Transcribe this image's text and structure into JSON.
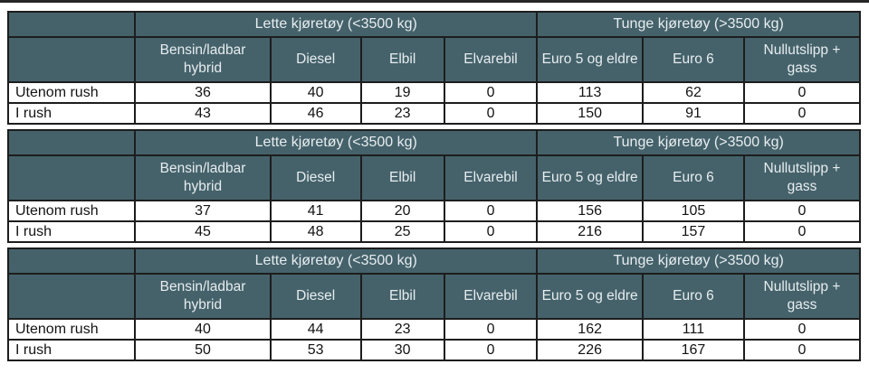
{
  "colors": {
    "header_bg": "#45626b",
    "header_text": "#e7edef",
    "border": "#1d1d1d",
    "data_text": "#131313",
    "page_bg": "#ffffff"
  },
  "labels": {
    "light_group": "Lette kjøretøy (<3500 kg)",
    "heavy_group": "Tunge kjøretøy (>3500 kg)",
    "columns": [
      "Bensin/ladbar hybrid",
      "Diesel",
      "Elbil",
      "Elvarebil",
      "Euro 5 og eldre",
      "Euro 6",
      "Nullutslipp + gass"
    ],
    "row_labels": [
      "Utenom rush",
      "I rush"
    ]
  },
  "tables": [
    {
      "rows": [
        {
          "label": "Utenom rush",
          "values": [
            "36",
            "40",
            "19",
            "0",
            "113",
            "62",
            "0"
          ]
        },
        {
          "label": "I rush",
          "values": [
            "43",
            "46",
            "23",
            "0",
            "150",
            "91",
            "0"
          ]
        }
      ]
    },
    {
      "rows": [
        {
          "label": "Utenom rush",
          "values": [
            "37",
            "41",
            "20",
            "0",
            "156",
            "105",
            "0"
          ]
        },
        {
          "label": "I rush",
          "values": [
            "45",
            "48",
            "25",
            "0",
            "216",
            "157",
            "0"
          ]
        }
      ]
    },
    {
      "rows": [
        {
          "label": "Utenom rush",
          "values": [
            "40",
            "44",
            "23",
            "0",
            "162",
            "111",
            "0"
          ]
        },
        {
          "label": "I rush",
          "values": [
            "50",
            "53",
            "30",
            "0",
            "226",
            "167",
            "0"
          ]
        }
      ]
    }
  ],
  "chart_data": [
    {
      "type": "table",
      "title": "",
      "column_groups": [
        {
          "label": "Lette kjøretøy (<3500 kg)",
          "span": 4
        },
        {
          "label": "Tunge kjøretøy (>3500 kg)",
          "span": 3
        }
      ],
      "columns": [
        "",
        "Bensin/ladbar hybrid",
        "Diesel",
        "Elbil",
        "Elvarebil",
        "Euro 5 og eldre",
        "Euro 6",
        "Nullutslipp + gass"
      ],
      "rows": [
        [
          "Utenom rush",
          36,
          40,
          19,
          0,
          113,
          62,
          0
        ],
        [
          "I rush",
          43,
          46,
          23,
          0,
          150,
          91,
          0
        ]
      ]
    },
    {
      "type": "table",
      "title": "",
      "column_groups": [
        {
          "label": "Lette kjøretøy (<3500 kg)",
          "span": 4
        },
        {
          "label": "Tunge kjøretøy (>3500 kg)",
          "span": 3
        }
      ],
      "columns": [
        "",
        "Bensin/ladbar hybrid",
        "Diesel",
        "Elbil",
        "Elvarebil",
        "Euro 5 og eldre",
        "Euro 6",
        "Nullutslipp + gass"
      ],
      "rows": [
        [
          "Utenom rush",
          37,
          41,
          20,
          0,
          156,
          105,
          0
        ],
        [
          "I rush",
          45,
          48,
          25,
          0,
          216,
          157,
          0
        ]
      ]
    },
    {
      "type": "table",
      "title": "",
      "column_groups": [
        {
          "label": "Lette kjøretøy (<3500 kg)",
          "span": 4
        },
        {
          "label": "Tunge kjøretøy (>3500 kg)",
          "span": 3
        }
      ],
      "columns": [
        "",
        "Bensin/ladbar hybrid",
        "Diesel",
        "Elbil",
        "Elvarebil",
        "Euro 5 og eldre",
        "Euro 6",
        "Nullutslipp + gass"
      ],
      "rows": [
        [
          "Utenom rush",
          40,
          44,
          23,
          0,
          162,
          111,
          0
        ],
        [
          "I rush",
          50,
          53,
          30,
          0,
          226,
          167,
          0
        ]
      ]
    }
  ]
}
